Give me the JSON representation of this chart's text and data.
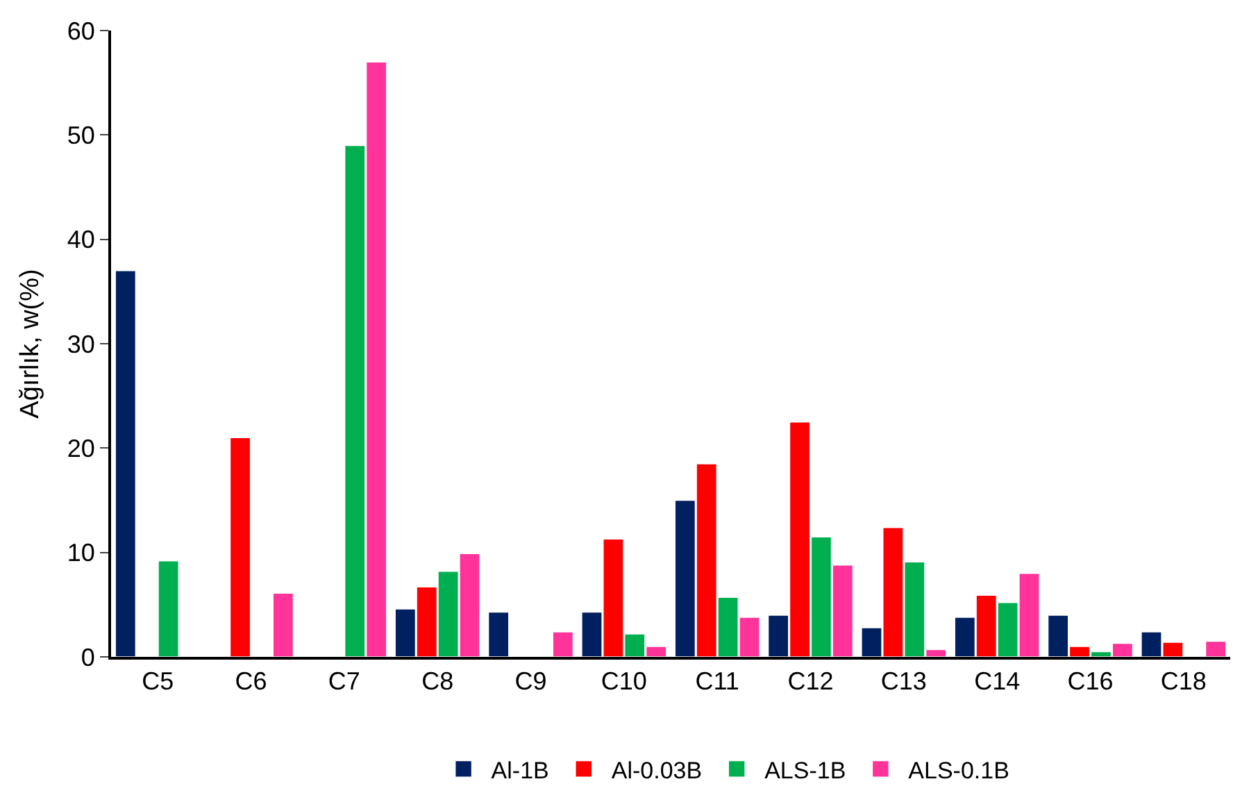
{
  "chart_data": {
    "type": "bar",
    "ylabel": "Ağırlık, w(%)",
    "categories": [
      "C5",
      "C6",
      "C7",
      "C8",
      "C9",
      "C10",
      "C11",
      "C12",
      "C13",
      "C14",
      "C16",
      "C18"
    ],
    "series": [
      {
        "name": "Al-1B",
        "color": "#002060",
        "values": [
          37,
          null,
          null,
          4.6,
          4.3,
          4.3,
          15,
          4.0,
          2.8,
          3.8,
          4.0,
          2.4
        ]
      },
      {
        "name": "Al-0.03B",
        "color": "#ff0000",
        "values": [
          null,
          21,
          null,
          6.7,
          null,
          11.3,
          18.5,
          22.5,
          12.4,
          5.9,
          1.0,
          1.4
        ]
      },
      {
        "name": "ALS-1B",
        "color": "#00b050",
        "values": [
          9.2,
          null,
          49,
          8.2,
          null,
          2.2,
          5.7,
          11.5,
          9.1,
          5.2,
          0.5,
          null
        ]
      },
      {
        "name": "ALS-0.1B",
        "color": "#ff3399",
        "values": [
          null,
          6.1,
          57,
          9.9,
          2.4,
          1.0,
          3.8,
          8.8,
          0.7,
          8.0,
          1.3,
          1.5
        ]
      }
    ],
    "ylim": [
      0,
      60
    ],
    "yticks": [
      0,
      10,
      20,
      30,
      40,
      50,
      60
    ],
    "grid": false,
    "legend": "bottom"
  }
}
